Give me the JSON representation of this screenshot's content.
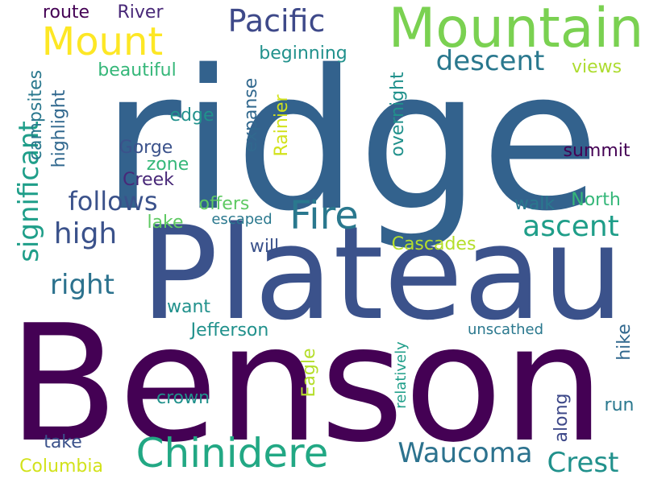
{
  "word_cloud": {
    "words": [
      {
        "text": "ridge",
        "color": "#33628d",
        "orientation": "horizontal"
      },
      {
        "text": "Benson",
        "color": "#440154",
        "orientation": "horizontal"
      },
      {
        "text": "Plateau",
        "color": "#3b528b",
        "orientation": "horizontal"
      },
      {
        "text": "Mountain",
        "color": "#7ad151",
        "orientation": "horizontal"
      },
      {
        "text": "Mount",
        "color": "#fde725",
        "orientation": "horizontal"
      },
      {
        "text": "Pacific",
        "color": "#3e4989",
        "orientation": "horizontal"
      },
      {
        "text": "Chinidere",
        "color": "#22a884",
        "orientation": "horizontal"
      },
      {
        "text": "Fire",
        "color": "#2a788e",
        "orientation": "horizontal"
      },
      {
        "text": "significant",
        "color": "#1f9e89",
        "orientation": "vertical"
      },
      {
        "text": "descent",
        "color": "#2a788e",
        "orientation": "horizontal"
      },
      {
        "text": "ascent",
        "color": "#1f9e89",
        "orientation": "horizontal"
      },
      {
        "text": "follows",
        "color": "#3b528b",
        "orientation": "horizontal"
      },
      {
        "text": "high",
        "color": "#3b528b",
        "orientation": "horizontal"
      },
      {
        "text": "right",
        "color": "#2c728e",
        "orientation": "horizontal"
      },
      {
        "text": "Waucoma",
        "color": "#2c728e",
        "orientation": "horizontal"
      },
      {
        "text": "Crest",
        "color": "#21918c",
        "orientation": "horizontal"
      },
      {
        "text": "route",
        "color": "#440154",
        "orientation": "horizontal"
      },
      {
        "text": "River",
        "color": "#482878",
        "orientation": "horizontal"
      },
      {
        "text": "beginning",
        "color": "#21918c",
        "orientation": "horizontal"
      },
      {
        "text": "beautiful",
        "color": "#35b779",
        "orientation": "horizontal"
      },
      {
        "text": "views",
        "color": "#addc30",
        "orientation": "horizontal"
      },
      {
        "text": "campsites",
        "color": "#2a788e",
        "orientation": "vertical"
      },
      {
        "text": "highlight",
        "color": "#31688e",
        "orientation": "vertical"
      },
      {
        "text": "expanse",
        "color": "#31688e",
        "orientation": "vertical"
      },
      {
        "text": "Rainier",
        "color": "#d2e21b",
        "orientation": "vertical"
      },
      {
        "text": "overnight",
        "color": "#21918c",
        "orientation": "vertical"
      },
      {
        "text": "edge",
        "color": "#21918c",
        "orientation": "horizontal"
      },
      {
        "text": "summit",
        "color": "#440154",
        "orientation": "horizontal"
      },
      {
        "text": "Gorge",
        "color": "#3b528b",
        "orientation": "horizontal"
      },
      {
        "text": "zone",
        "color": "#35b779",
        "orientation": "horizontal"
      },
      {
        "text": "Creek",
        "color": "#482878",
        "orientation": "horizontal"
      },
      {
        "text": "offers",
        "color": "#5ec962",
        "orientation": "horizontal"
      },
      {
        "text": "walk",
        "color": "#2a788e",
        "orientation": "horizontal"
      },
      {
        "text": "North",
        "color": "#35b779",
        "orientation": "horizontal"
      },
      {
        "text": "lake",
        "color": "#5ec962",
        "orientation": "horizontal"
      },
      {
        "text": "escaped",
        "color": "#2a788e",
        "orientation": "horizontal"
      },
      {
        "text": "will",
        "color": "#3b528b",
        "orientation": "horizontal"
      },
      {
        "text": "Cascades",
        "color": "#b5de2b",
        "orientation": "horizontal"
      },
      {
        "text": "want",
        "color": "#21918c",
        "orientation": "horizontal"
      },
      {
        "text": "Jefferson",
        "color": "#21918c",
        "orientation": "horizontal"
      },
      {
        "text": "unscathed",
        "color": "#2a788e",
        "orientation": "horizontal"
      },
      {
        "text": "hike",
        "color": "#31688e",
        "orientation": "vertical"
      },
      {
        "text": "Eagle",
        "color": "#b5de2b",
        "orientation": "vertical"
      },
      {
        "text": "relatively",
        "color": "#1f9e89",
        "orientation": "vertical"
      },
      {
        "text": "crown",
        "color": "#21918c",
        "orientation": "horizontal"
      },
      {
        "text": "along",
        "color": "#3e4989",
        "orientation": "vertical"
      },
      {
        "text": "run",
        "color": "#2a788e",
        "orientation": "horizontal"
      },
      {
        "text": "take",
        "color": "#3b528b",
        "orientation": "horizontal"
      },
      {
        "text": "Columbia",
        "color": "#d2e21b",
        "orientation": "horizontal"
      }
    ]
  }
}
